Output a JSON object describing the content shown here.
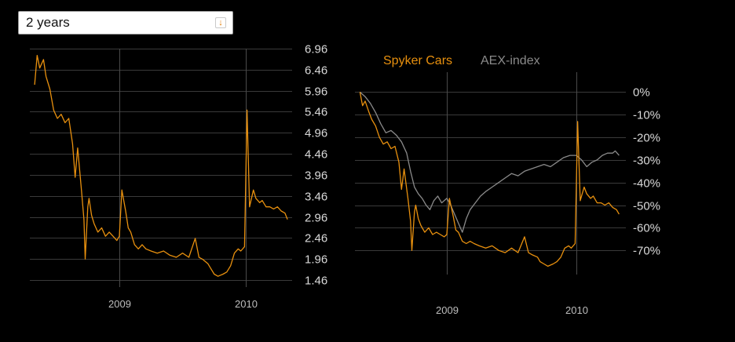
{
  "period_select": {
    "value": "2 years",
    "icon": "dropdown-arrow-icon"
  },
  "colors": {
    "background": "#000000",
    "spyker": "#e8900e",
    "aex": "#8a8a8a",
    "grid": "#3a3a3a"
  },
  "chart_data": [
    {
      "type": "line",
      "title": "",
      "series": [
        {
          "name": "",
          "color": "#e8900e",
          "x": [
            2008.33,
            2008.35,
            2008.37,
            2008.4,
            2008.42,
            2008.45,
            2008.48,
            2008.51,
            2008.54,
            2008.57,
            2008.6,
            2008.63,
            2008.65,
            2008.67,
            2008.7,
            2008.72,
            2008.73,
            2008.75,
            2008.76,
            2008.78,
            2008.8,
            2008.83,
            2008.86,
            2008.89,
            2008.92,
            2008.95,
            2008.98,
            2009.0,
            2009.02,
            2009.05,
            2009.07,
            2009.09,
            2009.12,
            2009.15,
            2009.18,
            2009.21,
            2009.25,
            2009.3,
            2009.35,
            2009.4,
            2009.45,
            2009.5,
            2009.55,
            2009.6,
            2009.63,
            2009.66,
            2009.7,
            2009.72,
            2009.75,
            2009.78,
            2009.82,
            2009.85,
            2009.88,
            2009.91,
            2009.94,
            2009.96,
            2009.99,
            2010.01,
            2010.03,
            2010.06,
            2010.08,
            2010.11,
            2010.13,
            2010.16,
            2010.19,
            2010.22,
            2010.25,
            2010.28,
            2010.31,
            2010.33
          ],
          "y": [
            6.1,
            6.8,
            6.5,
            6.7,
            6.3,
            6.0,
            5.5,
            5.3,
            5.4,
            5.2,
            5.3,
            4.7,
            3.9,
            4.6,
            3.6,
            2.9,
            1.96,
            3.2,
            3.4,
            3.0,
            2.8,
            2.6,
            2.7,
            2.5,
            2.6,
            2.5,
            2.4,
            2.5,
            3.6,
            3.1,
            2.7,
            2.6,
            2.3,
            2.2,
            2.3,
            2.2,
            2.15,
            2.1,
            2.15,
            2.05,
            2.0,
            2.1,
            2.0,
            2.45,
            2.0,
            1.95,
            1.85,
            1.75,
            1.6,
            1.55,
            1.6,
            1.65,
            1.8,
            2.1,
            2.2,
            2.15,
            2.25,
            5.5,
            3.2,
            3.6,
            3.4,
            3.3,
            3.35,
            3.2,
            3.2,
            3.15,
            3.2,
            3.1,
            3.05,
            2.9
          ]
        }
      ],
      "x_ticks": [
        "2009",
        "2010"
      ],
      "x_tick_values": [
        2009.0,
        2010.0
      ],
      "xlim": [
        2008.32,
        2010.36
      ],
      "y_ticks": [
        "6.96",
        "6.46",
        "5.96",
        "5.46",
        "4.96",
        "4.46",
        "3.96",
        "3.46",
        "2.96",
        "2.46",
        "1.96",
        "1.46"
      ],
      "y_tick_values": [
        6.96,
        6.46,
        5.96,
        5.46,
        4.96,
        4.46,
        3.96,
        3.46,
        2.96,
        2.46,
        1.96,
        1.46
      ],
      "ylim": [
        1.46,
        6.96
      ],
      "y_axis_side": "right",
      "grid": true
    },
    {
      "type": "line",
      "title": "",
      "legend": [
        {
          "name": "Spyker Cars",
          "color": "#e8900e"
        },
        {
          "name": "AEX-index",
          "color": "#8a8a8a"
        }
      ],
      "legend_position": "top-left",
      "series": [
        {
          "name": "Spyker Cars",
          "color": "#e8900e",
          "x": [
            2008.33,
            2008.35,
            2008.37,
            2008.4,
            2008.42,
            2008.45,
            2008.48,
            2008.51,
            2008.54,
            2008.57,
            2008.6,
            2008.63,
            2008.65,
            2008.67,
            2008.7,
            2008.72,
            2008.73,
            2008.75,
            2008.76,
            2008.78,
            2008.8,
            2008.83,
            2008.86,
            2008.89,
            2008.92,
            2008.95,
            2008.98,
            2009.0,
            2009.02,
            2009.05,
            2009.07,
            2009.09,
            2009.12,
            2009.15,
            2009.18,
            2009.21,
            2009.25,
            2009.3,
            2009.35,
            2009.4,
            2009.45,
            2009.5,
            2009.55,
            2009.6,
            2009.63,
            2009.66,
            2009.7,
            2009.72,
            2009.75,
            2009.78,
            2009.82,
            2009.85,
            2009.88,
            2009.91,
            2009.94,
            2009.96,
            2009.99,
            2010.01,
            2010.03,
            2010.06,
            2010.08,
            2010.11,
            2010.13,
            2010.16,
            2010.19,
            2010.22,
            2010.25,
            2010.28,
            2010.31,
            2010.33
          ],
          "y": [
            0,
            -6,
            -4,
            -9,
            -12,
            -15,
            -20,
            -23,
            -22,
            -25,
            -24,
            -31,
            -43,
            -34,
            -47,
            -57,
            -70,
            -53,
            -50,
            -56,
            -59,
            -62,
            -60,
            -63,
            -62,
            -63,
            -64,
            -63,
            -47,
            -55,
            -61,
            -62,
            -66,
            -67,
            -66,
            -67,
            -68,
            -69,
            -68,
            -70,
            -71,
            -69,
            -71,
            -64,
            -71,
            -72,
            -73,
            -75,
            -76,
            -77,
            -76,
            -75,
            -73,
            -69,
            -68,
            -69,
            -67,
            -13,
            -48,
            -42,
            -45,
            -47,
            -46,
            -49,
            -49,
            -50,
            -49,
            -51,
            -52,
            -54
          ]
        },
        {
          "name": "AEX-index",
          "color": "#8a8a8a",
          "x": [
            2008.33,
            2008.37,
            2008.41,
            2008.45,
            2008.49,
            2008.53,
            2008.57,
            2008.61,
            2008.65,
            2008.69,
            2008.72,
            2008.75,
            2008.78,
            2008.81,
            2008.84,
            2008.87,
            2008.9,
            2008.93,
            2008.96,
            2009.0,
            2009.03,
            2009.06,
            2009.09,
            2009.12,
            2009.15,
            2009.18,
            2009.22,
            2009.26,
            2009.3,
            2009.35,
            2009.4,
            2009.45,
            2009.5,
            2009.55,
            2009.6,
            2009.65,
            2009.7,
            2009.75,
            2009.8,
            2009.85,
            2009.9,
            2009.95,
            2010.0,
            2010.04,
            2010.08,
            2010.12,
            2010.16,
            2010.2,
            2010.24,
            2010.28,
            2010.3,
            2010.33
          ],
          "y": [
            0,
            -2,
            -5,
            -9,
            -14,
            -18,
            -17,
            -19,
            -22,
            -27,
            -35,
            -42,
            -45,
            -47,
            -50,
            -52,
            -48,
            -46,
            -49,
            -47,
            -50,
            -54,
            -58,
            -62,
            -56,
            -52,
            -49,
            -46,
            -44,
            -42,
            -40,
            -38,
            -36,
            -37,
            -35,
            -34,
            -33,
            -32,
            -33,
            -31,
            -29,
            -28,
            -28,
            -30,
            -33,
            -31,
            -30,
            -28,
            -27,
            -27,
            -26,
            -28
          ]
        }
      ],
      "x_ticks": [
        "2009",
        "2010"
      ],
      "x_tick_values": [
        2009.0,
        2010.0
      ],
      "xlim": [
        2008.32,
        2010.36
      ],
      "y_ticks": [
        "0%",
        "-10%",
        "-20%",
        "-30%",
        "-40%",
        "-50%",
        "-60%",
        "-70%"
      ],
      "y_tick_values": [
        0,
        -10,
        -20,
        -30,
        -40,
        -50,
        -60,
        -70
      ],
      "ylim": [
        -80,
        5
      ],
      "y_axis_side": "right",
      "grid": true
    }
  ]
}
